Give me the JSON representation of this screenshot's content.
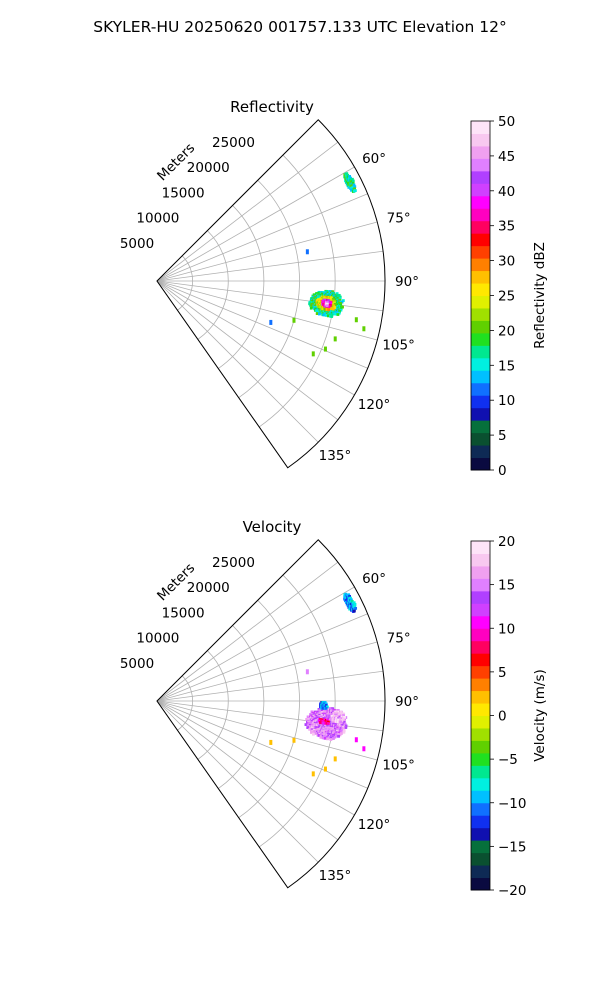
{
  "figure": {
    "title": "SKYLER-HU  20250620  001757.133 UTC Elevation 12°"
  },
  "chart_data": [
    {
      "type": "polar-sector-heatmap",
      "title": "Reflectivity",
      "range_label": "Meters",
      "range_ticks": [
        5000,
        10000,
        15000,
        20000,
        25000
      ],
      "range_max_m": 32000,
      "azimuth_min_deg": 45,
      "azimuth_max_deg": 145,
      "azimuth_ticks_deg": [
        60,
        75,
        90,
        105,
        120,
        135
      ],
      "azimuth_spokes_deg": [
        45,
        52.5,
        60,
        67.5,
        75,
        82.5,
        90,
        97.5,
        105,
        112.5,
        120,
        127.5,
        135,
        145
      ],
      "grid": true,
      "colorbar": {
        "label": "Reflectivity dBZ",
        "min": 0,
        "max": 50,
        "ticks": [
          0,
          5,
          10,
          15,
          20,
          25,
          30,
          35,
          40,
          45,
          50
        ],
        "colors": [
          "#0a0a40",
          "#0e2a55",
          "#0a5030",
          "#06703c",
          "#1010b0",
          "#1030f0",
          "#1070ff",
          "#00c0ff",
          "#00f0e0",
          "#00e890",
          "#20e020",
          "#60d000",
          "#a0e000",
          "#e0f000",
          "#ffe800",
          "#ffc000",
          "#ff8000",
          "#ff4000",
          "#ff0000",
          "#ff0060",
          "#ff00c0",
          "#ff00ff",
          "#d040ff",
          "#b040ff",
          "#e080ff",
          "#f0a0f0",
          "#f8c8f0",
          "#fde4f8"
        ]
      },
      "echo_regions": [
        {
          "az": [
            93,
            102
          ],
          "range_m": [
            21500,
            26500
          ],
          "dbz": 17
        },
        {
          "az": [
            95,
            100
          ],
          "range_m": [
            22500,
            25500
          ],
          "dbz": 25
        },
        {
          "az": [
            96,
            99
          ],
          "range_m": [
            23300,
            24700
          ],
          "dbz": 38
        },
        {
          "az": [
            96.8,
            98.4
          ],
          "range_m": [
            23800,
            24300
          ],
          "dbz": 45
        },
        {
          "az": [
            60,
            66
          ],
          "range_m": [
            29800,
            31000
          ],
          "dbz": 17
        }
      ],
      "echo_specks": [
        {
          "az": 79,
          "range_m": 21500,
          "dbz": 12
        },
        {
          "az": 103,
          "range_m": 29800,
          "dbz": 20
        },
        {
          "az": 101,
          "range_m": 28500,
          "dbz": 20
        },
        {
          "az": 108,
          "range_m": 26300,
          "dbz": 20
        },
        {
          "az": 112,
          "range_m": 25500,
          "dbz": 20
        },
        {
          "az": 115,
          "range_m": 24200,
          "dbz": 20
        },
        {
          "az": 110,
          "range_m": 17000,
          "dbz": 12
        },
        {
          "az": 106,
          "range_m": 20000,
          "dbz": 20
        }
      ]
    },
    {
      "type": "polar-sector-heatmap",
      "title": "Velocity",
      "range_label": "Meters",
      "range_ticks": [
        5000,
        10000,
        15000,
        20000,
        25000
      ],
      "range_max_m": 32000,
      "azimuth_min_deg": 45,
      "azimuth_max_deg": 145,
      "azimuth_ticks_deg": [
        60,
        75,
        90,
        105,
        120,
        135
      ],
      "azimuth_spokes_deg": [
        45,
        52.5,
        60,
        67.5,
        75,
        82.5,
        90,
        97.5,
        105,
        112.5,
        120,
        127.5,
        135,
        145
      ],
      "grid": true,
      "colorbar": {
        "label": "Velocity (m/s)",
        "min": -20,
        "max": 20,
        "ticks": [
          -20,
          -15,
          -10,
          -5,
          0,
          5,
          10,
          15,
          20
        ],
        "colors": [
          "#0a0a40",
          "#0e2a55",
          "#0a5030",
          "#06703c",
          "#1010b0",
          "#1030f0",
          "#1070ff",
          "#00c0ff",
          "#00f0e0",
          "#00e890",
          "#20e020",
          "#60d000",
          "#a0e000",
          "#e0f000",
          "#ffe800",
          "#ffc000",
          "#ff8000",
          "#ff4000",
          "#ff0000",
          "#ff0060",
          "#ff00c0",
          "#ff00ff",
          "#d040ff",
          "#b040ff",
          "#e080ff",
          "#f0a0f0",
          "#f8c8f0",
          "#fde4f8"
        ]
      },
      "echo_regions": [
        {
          "az": [
            92,
            103
          ],
          "range_m": [
            21000,
            27000
          ],
          "ms": 15
        },
        {
          "az": [
            93,
            97
          ],
          "range_m": [
            24500,
            26500
          ],
          "ms": 17
        },
        {
          "az": [
            96,
            98
          ],
          "range_m": [
            22800,
            24500
          ],
          "ms": 9
        },
        {
          "az": [
            90,
            93
          ],
          "range_m": [
            22800,
            24000
          ],
          "ms": -10
        },
        {
          "az": [
            60,
            66
          ],
          "range_m": [
            29800,
            31000
          ],
          "ms": -10
        }
      ],
      "echo_specks": [
        {
          "az": 79,
          "range_m": 21500,
          "ms": 15
        },
        {
          "az": 103,
          "range_m": 29800,
          "ms": 10
        },
        {
          "az": 101,
          "range_m": 28500,
          "ms": 10
        },
        {
          "az": 108,
          "range_m": 26300,
          "ms": 2
        },
        {
          "az": 112,
          "range_m": 25500,
          "ms": 2
        },
        {
          "az": 115,
          "range_m": 24200,
          "ms": 2
        },
        {
          "az": 110,
          "range_m": 17000,
          "ms": 2
        },
        {
          "az": 106,
          "range_m": 20000,
          "ms": 2
        }
      ]
    }
  ]
}
